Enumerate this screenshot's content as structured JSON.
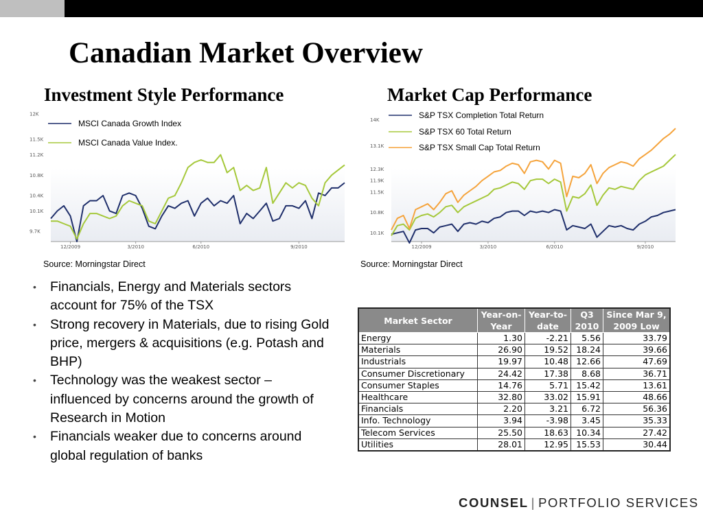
{
  "slide": {
    "title": "Canadian Market Overview",
    "left_heading": "Investment Style Performance",
    "right_heading": "Market Cap Performance",
    "left_source": "Source: Morningstar Direct",
    "right_source": "Source: Morningstar Direct"
  },
  "bullets": [
    "Financials, Energy and Materials sectors account for 75% of the TSX",
    "Strong recovery in Materials, due to rising Gold price, mergers & acquisitions (e.g. Potash and BHP)",
    "Technology was the weakest sector – influenced by concerns around the growth of Research in Motion",
    "Financials weaker due to concerns around global regulation of banks"
  ],
  "table": {
    "headers": [
      "Market Sector",
      "Year-on-Year",
      "Year-to-date",
      "Q3 2010",
      "Since Mar 9, 2009 Low"
    ],
    "header_lines": [
      [
        "Market Sector"
      ],
      [
        "Year-on-",
        "Year"
      ],
      [
        "Year-to-",
        "date"
      ],
      [
        "Q3",
        "2010"
      ],
      [
        "Since Mar 9,",
        "2009 Low"
      ]
    ],
    "rows": [
      [
        "Energy",
        "1.30",
        "-2.21",
        "5.56",
        "33.79"
      ],
      [
        "Materials",
        "26.90",
        "19.52",
        "18.24",
        "39.66"
      ],
      [
        "Industrials",
        "19.97",
        "10.48",
        "12.66",
        "47.69"
      ],
      [
        "Consumer Discretionary",
        "24.42",
        "17.38",
        "8.68",
        "36.71"
      ],
      [
        "Consumer Staples",
        "14.76",
        "5.71",
        "15.42",
        "13.61"
      ],
      [
        "Healthcare",
        "32.80",
        "33.02",
        "15.91",
        "48.66"
      ],
      [
        "Financials",
        "2.20",
        "3.21",
        "6.72",
        "56.36"
      ],
      [
        "Info. Technology",
        "3.94",
        "-3.98",
        "3.45",
        "35.33"
      ],
      [
        "Telecom Services",
        "25.50",
        "18.63",
        "10.34",
        "27.42"
      ],
      [
        "Utilities",
        "28.01",
        "12.95",
        "15.53",
        "30.44"
      ]
    ]
  },
  "logo": {
    "bold": "COUNSEL",
    "rest": "PORTFOLIO SERVICES"
  },
  "colors": {
    "navy": "#1f2f6b",
    "green": "#a5c83a",
    "orange": "#f5a33b"
  },
  "chart_data": [
    {
      "type": "line",
      "title": "Investment Style Performance",
      "ylim": [
        9500,
        12000
      ],
      "yticks": [
        9700,
        10100,
        10400,
        10800,
        11200,
        11500,
        12000
      ],
      "ytick_labels": [
        "9.7K",
        "10.1K",
        "10.4K",
        "10.8K",
        "11.2K",
        "11.5K",
        "12K"
      ],
      "xticks": [
        3,
        13,
        23,
        38
      ],
      "xtick_labels": [
        "12/2009",
        "3/2010",
        "6/2010",
        "9/2010"
      ],
      "series": [
        {
          "name": "MSCI Canada Growth Index",
          "color": "#1f2f6b",
          "values": [
            9950,
            10100,
            10200,
            10000,
            9500,
            10200,
            10300,
            10300,
            10400,
            10100,
            10050,
            10400,
            10450,
            10400,
            10150,
            9800,
            9750,
            10000,
            10200,
            10150,
            10250,
            10300,
            10000,
            10250,
            10350,
            10200,
            10300,
            10250,
            10400,
            9850,
            10050,
            9950,
            10100,
            10250,
            9900,
            9950,
            10200,
            10200,
            10150,
            10300,
            9950,
            10450,
            10400,
            10550,
            10550,
            10650
          ]
        },
        {
          "name": "MSCI Canada Value Index.",
          "color": "#a5c83a",
          "values": [
            9900,
            9900,
            9850,
            9800,
            9550,
            9850,
            10050,
            10050,
            10000,
            9950,
            10000,
            10200,
            10300,
            10250,
            10200,
            9900,
            9850,
            10100,
            10350,
            10400,
            10650,
            10950,
            11050,
            11100,
            11050,
            11050,
            11200,
            10850,
            10950,
            10500,
            10600,
            10500,
            10550,
            10950,
            10250,
            10450,
            10650,
            10550,
            10650,
            10600,
            10350,
            10200,
            10650,
            10800,
            10900,
            11000
          ]
        }
      ],
      "grid": false,
      "legend": "top-left"
    },
    {
      "type": "line",
      "title": "Market Cap Performance",
      "ylim": [
        9800,
        14200
      ],
      "yticks": [
        10100,
        10800,
        11500,
        11900,
        12300,
        13100,
        14000
      ],
      "ytick_labels": [
        "10.1K",
        "10.8K",
        "11.5K",
        "11.9K",
        "12.3K",
        "13.1K",
        "14K"
      ],
      "xticks": [
        5,
        16,
        27,
        42
      ],
      "xtick_labels": [
        "12/2009",
        "3/2010",
        "6/2010",
        "9/2010"
      ],
      "series": [
        {
          "name": "S&P TSX Completion Total Return",
          "color": "#1f2f6b",
          "values": [
            10050,
            10100,
            10150,
            9750,
            10200,
            10250,
            10250,
            10100,
            10300,
            10350,
            10400,
            10150,
            10400,
            10450,
            10400,
            10500,
            10450,
            10600,
            10650,
            10800,
            10850,
            10850,
            10700,
            10850,
            10800,
            10850,
            10800,
            10900,
            10850,
            10200,
            10350,
            10300,
            10250,
            10400,
            9950,
            10150,
            10350,
            10300,
            10350,
            10250,
            10200,
            10400,
            10500,
            10650,
            10700,
            10800,
            10850,
            10900
          ]
        },
        {
          "name": "S&P TSX 60 Total Return",
          "color": "#a5c83a",
          "values": [
            10000,
            10350,
            10400,
            10200,
            10600,
            10700,
            10750,
            10650,
            10800,
            11000,
            11050,
            10800,
            11000,
            11100,
            11200,
            11300,
            11400,
            11600,
            11650,
            11750,
            11850,
            11800,
            11600,
            11900,
            11950,
            11950,
            11800,
            11950,
            11850,
            10850,
            11350,
            11300,
            11450,
            11750,
            11050,
            11400,
            11650,
            11600,
            11700,
            11650,
            11600,
            11900,
            12100,
            12200,
            12300,
            12400,
            12600,
            12800
          ]
        },
        {
          "name": "S&P TSX Small Cap Total Return",
          "color": "#f5a33b",
          "values": [
            10200,
            10600,
            10700,
            10250,
            10900,
            11000,
            11100,
            10900,
            11150,
            11450,
            11550,
            11150,
            11400,
            11550,
            11700,
            11900,
            12050,
            12200,
            12250,
            12400,
            12500,
            12450,
            12150,
            12550,
            12600,
            12550,
            12300,
            12600,
            12500,
            11350,
            12050,
            12000,
            12150,
            12450,
            11800,
            12150,
            12350,
            12450,
            12550,
            12500,
            12400,
            12650,
            12800,
            12950,
            13150,
            13350,
            13500,
            13700
          ]
        }
      ],
      "grid": false,
      "legend": "top-left"
    }
  ]
}
